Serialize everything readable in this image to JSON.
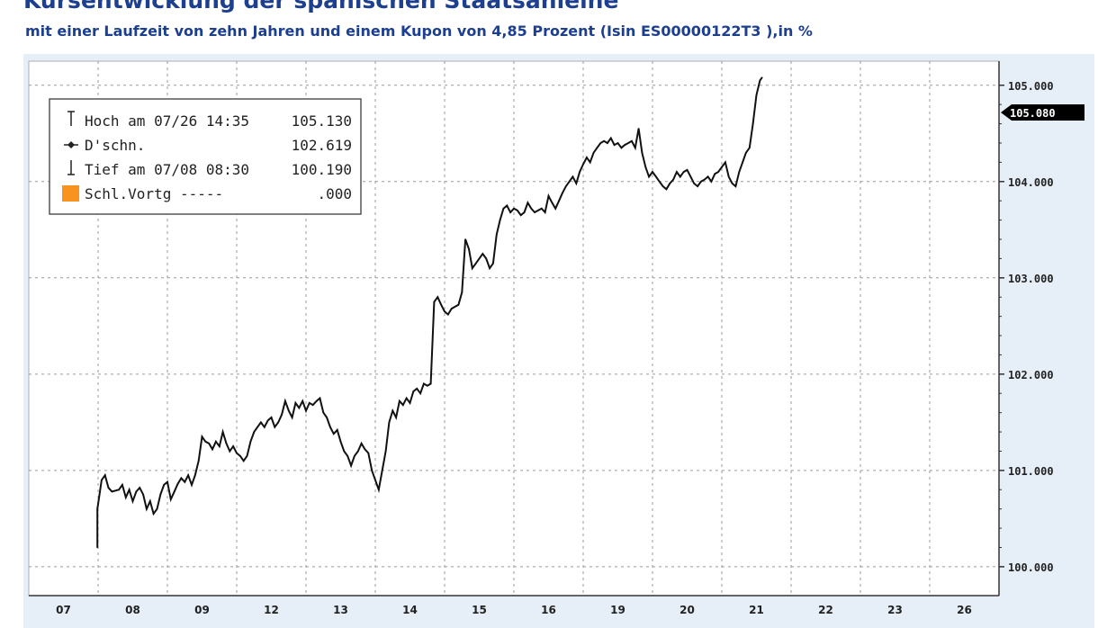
{
  "chart_data": {
    "type": "line",
    "title": "Kursentwicklung der spanischen Staatsanleihe",
    "subtitle": "mit einer Laufzeit von zehn Jahren und einem Kupon von 4,85 Prozent (Isin ES00000122T3 ),in %",
    "xlabel": "",
    "ylabel": "",
    "categories": [
      "07",
      "08",
      "09",
      "12",
      "13",
      "14",
      "15",
      "16",
      "19",
      "20",
      "21",
      "22",
      "23",
      "26"
    ],
    "yticks": [
      "100.000",
      "101.000",
      "102.000",
      "103.000",
      "104.000",
      "105.000"
    ],
    "ylim": [
      99.7,
      105.25
    ],
    "grid": true,
    "legend": {
      "placement": "top-left",
      "entries": [
        {
          "marker": "high",
          "label": "Hoch am 07/26 14:35",
          "value": "105.130"
        },
        {
          "marker": "avg",
          "label": "D'schn.",
          "value": "102.619"
        },
        {
          "marker": "low",
          "label": "Tief am 07/08 08:30",
          "value": "100.190"
        },
        {
          "marker": "orange-square",
          "label": "Schl.Vortg -----",
          "value": ".000"
        }
      ]
    },
    "last_value_label": "105.080",
    "series": [
      {
        "values": [
          [
            0.99,
            100.2
          ],
          [
            0.99,
            100.6
          ],
          [
            1.0,
            100.65
          ],
          [
            1.05,
            100.9
          ],
          [
            1.1,
            100.95
          ],
          [
            1.15,
            100.82
          ],
          [
            1.2,
            100.78
          ],
          [
            1.3,
            100.8
          ],
          [
            1.35,
            100.85
          ],
          [
            1.4,
            100.72
          ],
          [
            1.45,
            100.8
          ],
          [
            1.5,
            100.68
          ],
          [
            1.55,
            100.78
          ],
          [
            1.6,
            100.82
          ],
          [
            1.65,
            100.75
          ],
          [
            1.7,
            100.6
          ],
          [
            1.75,
            100.68
          ],
          [
            1.8,
            100.55
          ],
          [
            1.85,
            100.6
          ],
          [
            1.9,
            100.75
          ],
          [
            1.95,
            100.85
          ],
          [
            2.0,
            100.88
          ],
          [
            2.05,
            100.7
          ],
          [
            2.1,
            100.78
          ],
          [
            2.15,
            100.86
          ],
          [
            2.2,
            100.92
          ],
          [
            2.25,
            100.88
          ],
          [
            2.3,
            100.95
          ],
          [
            2.35,
            100.85
          ],
          [
            2.4,
            100.95
          ],
          [
            2.45,
            101.1
          ],
          [
            2.5,
            101.35
          ],
          [
            2.55,
            101.3
          ],
          [
            2.6,
            101.28
          ],
          [
            2.65,
            101.22
          ],
          [
            2.7,
            101.3
          ],
          [
            2.75,
            101.25
          ],
          [
            2.8,
            101.4
          ],
          [
            2.85,
            101.28
          ],
          [
            2.9,
            101.2
          ],
          [
            2.95,
            101.25
          ],
          [
            3.0,
            101.18
          ],
          [
            3.05,
            101.15
          ],
          [
            3.1,
            101.1
          ],
          [
            3.15,
            101.15
          ],
          [
            3.2,
            101.3
          ],
          [
            3.25,
            101.4
          ],
          [
            3.3,
            101.45
          ],
          [
            3.35,
            101.5
          ],
          [
            3.4,
            101.45
          ],
          [
            3.45,
            101.52
          ],
          [
            3.5,
            101.55
          ],
          [
            3.55,
            101.45
          ],
          [
            3.6,
            101.5
          ],
          [
            3.65,
            101.58
          ],
          [
            3.7,
            101.72
          ],
          [
            3.75,
            101.62
          ],
          [
            3.8,
            101.55
          ],
          [
            3.85,
            101.7
          ],
          [
            3.9,
            101.65
          ],
          [
            3.95,
            101.72
          ],
          [
            4.0,
            101.62
          ],
          [
            4.05,
            101.7
          ],
          [
            4.1,
            101.68
          ],
          [
            4.15,
            101.72
          ],
          [
            4.2,
            101.75
          ],
          [
            4.25,
            101.6
          ],
          [
            4.3,
            101.55
          ],
          [
            4.35,
            101.45
          ],
          [
            4.4,
            101.38
          ],
          [
            4.45,
            101.42
          ],
          [
            4.5,
            101.3
          ],
          [
            4.55,
            101.2
          ],
          [
            4.6,
            101.15
          ],
          [
            4.65,
            101.05
          ],
          [
            4.7,
            101.15
          ],
          [
            4.75,
            101.2
          ],
          [
            4.8,
            101.28
          ],
          [
            4.85,
            101.22
          ],
          [
            4.9,
            101.18
          ],
          [
            4.95,
            101.0
          ],
          [
            5.0,
            100.9
          ],
          [
            5.05,
            100.8
          ],
          [
            5.1,
            101.0
          ],
          [
            5.15,
            101.2
          ],
          [
            5.2,
            101.5
          ],
          [
            5.25,
            101.62
          ],
          [
            5.3,
            101.55
          ],
          [
            5.35,
            101.72
          ],
          [
            5.4,
            101.68
          ],
          [
            5.45,
            101.75
          ],
          [
            5.5,
            101.7
          ],
          [
            5.55,
            101.82
          ],
          [
            5.6,
            101.85
          ],
          [
            5.65,
            101.8
          ],
          [
            5.7,
            101.9
          ],
          [
            5.75,
            101.88
          ],
          [
            5.8,
            101.9
          ],
          [
            5.85,
            102.75
          ],
          [
            5.9,
            102.8
          ],
          [
            5.95,
            102.72
          ],
          [
            6.0,
            102.65
          ],
          [
            6.05,
            102.62
          ],
          [
            6.1,
            102.68
          ],
          [
            6.15,
            102.7
          ],
          [
            6.2,
            102.72
          ],
          [
            6.25,
            102.85
          ],
          [
            6.3,
            103.4
          ],
          [
            6.35,
            103.3
          ],
          [
            6.4,
            103.1
          ],
          [
            6.45,
            103.15
          ],
          [
            6.5,
            103.2
          ],
          [
            6.55,
            103.25
          ],
          [
            6.6,
            103.2
          ],
          [
            6.65,
            103.1
          ],
          [
            6.7,
            103.15
          ],
          [
            6.75,
            103.45
          ],
          [
            6.8,
            103.6
          ],
          [
            6.85,
            103.72
          ],
          [
            6.9,
            103.75
          ],
          [
            6.95,
            103.68
          ],
          [
            7.0,
            103.72
          ],
          [
            7.05,
            103.7
          ],
          [
            7.1,
            103.65
          ],
          [
            7.15,
            103.68
          ],
          [
            7.2,
            103.78
          ],
          [
            7.25,
            103.72
          ],
          [
            7.3,
            103.68
          ],
          [
            7.35,
            103.7
          ],
          [
            7.4,
            103.72
          ],
          [
            7.45,
            103.68
          ],
          [
            7.5,
            103.85
          ],
          [
            7.55,
            103.78
          ],
          [
            7.6,
            103.72
          ],
          [
            7.65,
            103.8
          ],
          [
            7.7,
            103.88
          ],
          [
            7.75,
            103.95
          ],
          [
            7.8,
            104.0
          ],
          [
            7.85,
            104.05
          ],
          [
            7.9,
            103.98
          ],
          [
            7.95,
            104.1
          ],
          [
            8.0,
            104.18
          ],
          [
            8.05,
            104.25
          ],
          [
            8.1,
            104.2
          ],
          [
            8.15,
            104.3
          ],
          [
            8.2,
            104.35
          ],
          [
            8.25,
            104.4
          ],
          [
            8.3,
            104.42
          ],
          [
            8.35,
            104.4
          ],
          [
            8.4,
            104.45
          ],
          [
            8.45,
            104.38
          ],
          [
            8.5,
            104.4
          ],
          [
            8.55,
            104.35
          ],
          [
            8.6,
            104.38
          ],
          [
            8.65,
            104.4
          ],
          [
            8.7,
            104.42
          ],
          [
            8.75,
            104.35
          ],
          [
            8.8,
            104.55
          ],
          [
            8.85,
            104.3
          ],
          [
            8.9,
            104.15
          ],
          [
            8.95,
            104.05
          ],
          [
            9.0,
            104.1
          ],
          [
            9.05,
            104.05
          ],
          [
            9.1,
            104.0
          ],
          [
            9.15,
            103.95
          ],
          [
            9.2,
            103.92
          ],
          [
            9.25,
            103.98
          ],
          [
            9.3,
            104.02
          ],
          [
            9.35,
            104.1
          ],
          [
            9.4,
            104.05
          ],
          [
            9.45,
            104.1
          ],
          [
            9.5,
            104.12
          ],
          [
            9.55,
            104.05
          ],
          [
            9.6,
            103.98
          ],
          [
            9.65,
            103.95
          ],
          [
            9.7,
            104.0
          ],
          [
            9.75,
            104.02
          ],
          [
            9.8,
            104.05
          ],
          [
            9.85,
            104.0
          ],
          [
            9.9,
            104.08
          ],
          [
            9.95,
            104.1
          ],
          [
            10.0,
            104.15
          ],
          [
            10.05,
            104.2
          ],
          [
            10.1,
            104.05
          ],
          [
            10.15,
            103.98
          ],
          [
            10.2,
            103.95
          ],
          [
            10.25,
            104.1
          ],
          [
            10.3,
            104.2
          ],
          [
            10.35,
            104.3
          ],
          [
            10.4,
            104.35
          ],
          [
            10.45,
            104.6
          ],
          [
            10.5,
            104.9
          ],
          [
            10.55,
            105.05
          ],
          [
            10.58,
            105.08
          ]
        ]
      }
    ]
  }
}
